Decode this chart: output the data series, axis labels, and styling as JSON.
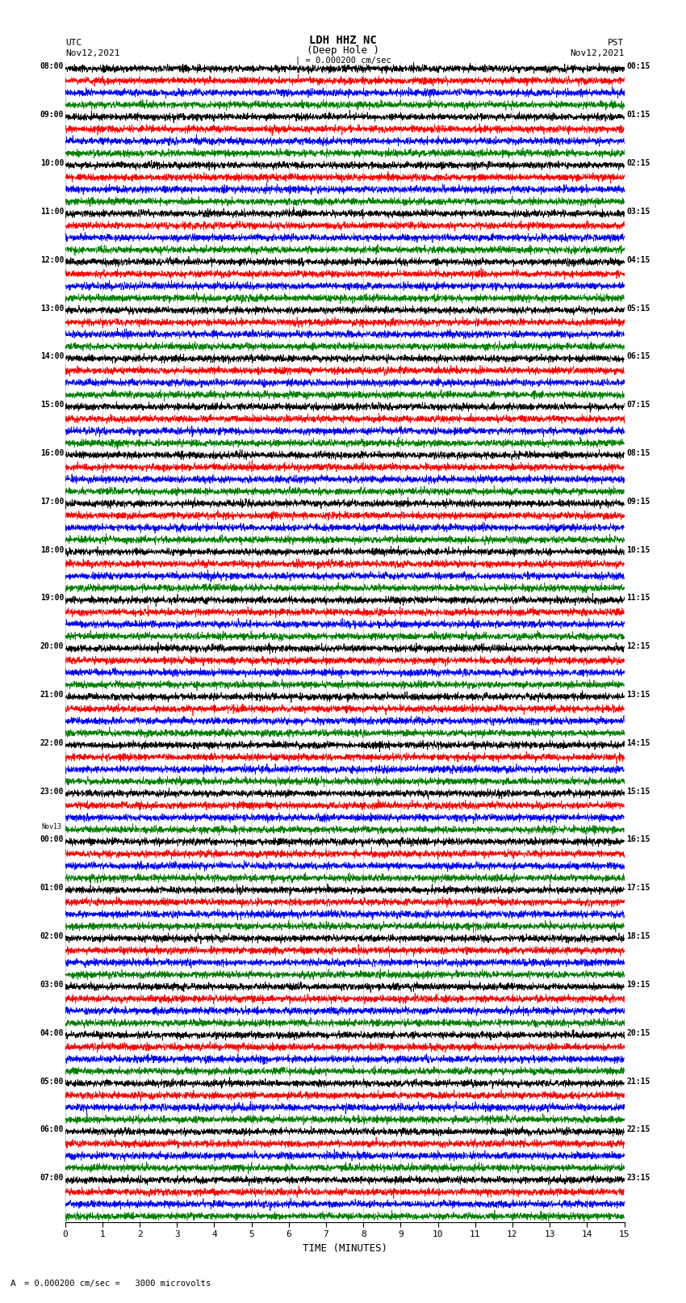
{
  "title_line1": "LDH HHZ NC",
  "title_line2": "(Deep Hole )",
  "scale_bar": "| = 0.000200 cm/sec",
  "left_label_top": "UTC",
  "left_label_date": "Nov12,2021",
  "right_label_top": "PST",
  "right_label_date": "Nov12,2021",
  "xlabel": "TIME (MINUTES)",
  "bottom_note": "= 0.000200 cm/sec =   3000 microvolts",
  "x_min": 0,
  "x_max": 15,
  "trace_colors": [
    "black",
    "red",
    "blue",
    "green"
  ],
  "background_color": "white",
  "grid_color": "#999999",
  "left_hour_labels": [
    [
      "08:00",
      0
    ],
    [
      "09:00",
      4
    ],
    [
      "10:00",
      8
    ],
    [
      "11:00",
      12
    ],
    [
      "12:00",
      16
    ],
    [
      "13:00",
      20
    ],
    [
      "14:00",
      24
    ],
    [
      "15:00",
      28
    ],
    [
      "16:00",
      32
    ],
    [
      "17:00",
      36
    ],
    [
      "18:00",
      40
    ],
    [
      "19:00",
      44
    ],
    [
      "20:00",
      48
    ],
    [
      "21:00",
      52
    ],
    [
      "22:00",
      56
    ],
    [
      "23:00",
      60
    ],
    [
      "00:00",
      64
    ],
    [
      "01:00",
      68
    ],
    [
      "02:00",
      72
    ],
    [
      "03:00",
      76
    ],
    [
      "04:00",
      80
    ],
    [
      "05:00",
      84
    ],
    [
      "06:00",
      88
    ],
    [
      "07:00",
      92
    ]
  ],
  "right_hour_labels": [
    [
      "00:15",
      0
    ],
    [
      "01:15",
      4
    ],
    [
      "02:15",
      8
    ],
    [
      "03:15",
      12
    ],
    [
      "04:15",
      16
    ],
    [
      "05:15",
      20
    ],
    [
      "06:15",
      24
    ],
    [
      "07:15",
      28
    ],
    [
      "08:15",
      32
    ],
    [
      "09:15",
      36
    ],
    [
      "10:15",
      40
    ],
    [
      "11:15",
      44
    ],
    [
      "12:15",
      48
    ],
    [
      "13:15",
      52
    ],
    [
      "14:15",
      56
    ],
    [
      "15:15",
      60
    ],
    [
      "16:15",
      64
    ],
    [
      "17:15",
      68
    ],
    [
      "18:15",
      72
    ],
    [
      "19:15",
      76
    ],
    [
      "20:15",
      80
    ],
    [
      "21:15",
      84
    ],
    [
      "22:15",
      88
    ],
    [
      "23:15",
      92
    ]
  ],
  "nov13_trace": 64
}
